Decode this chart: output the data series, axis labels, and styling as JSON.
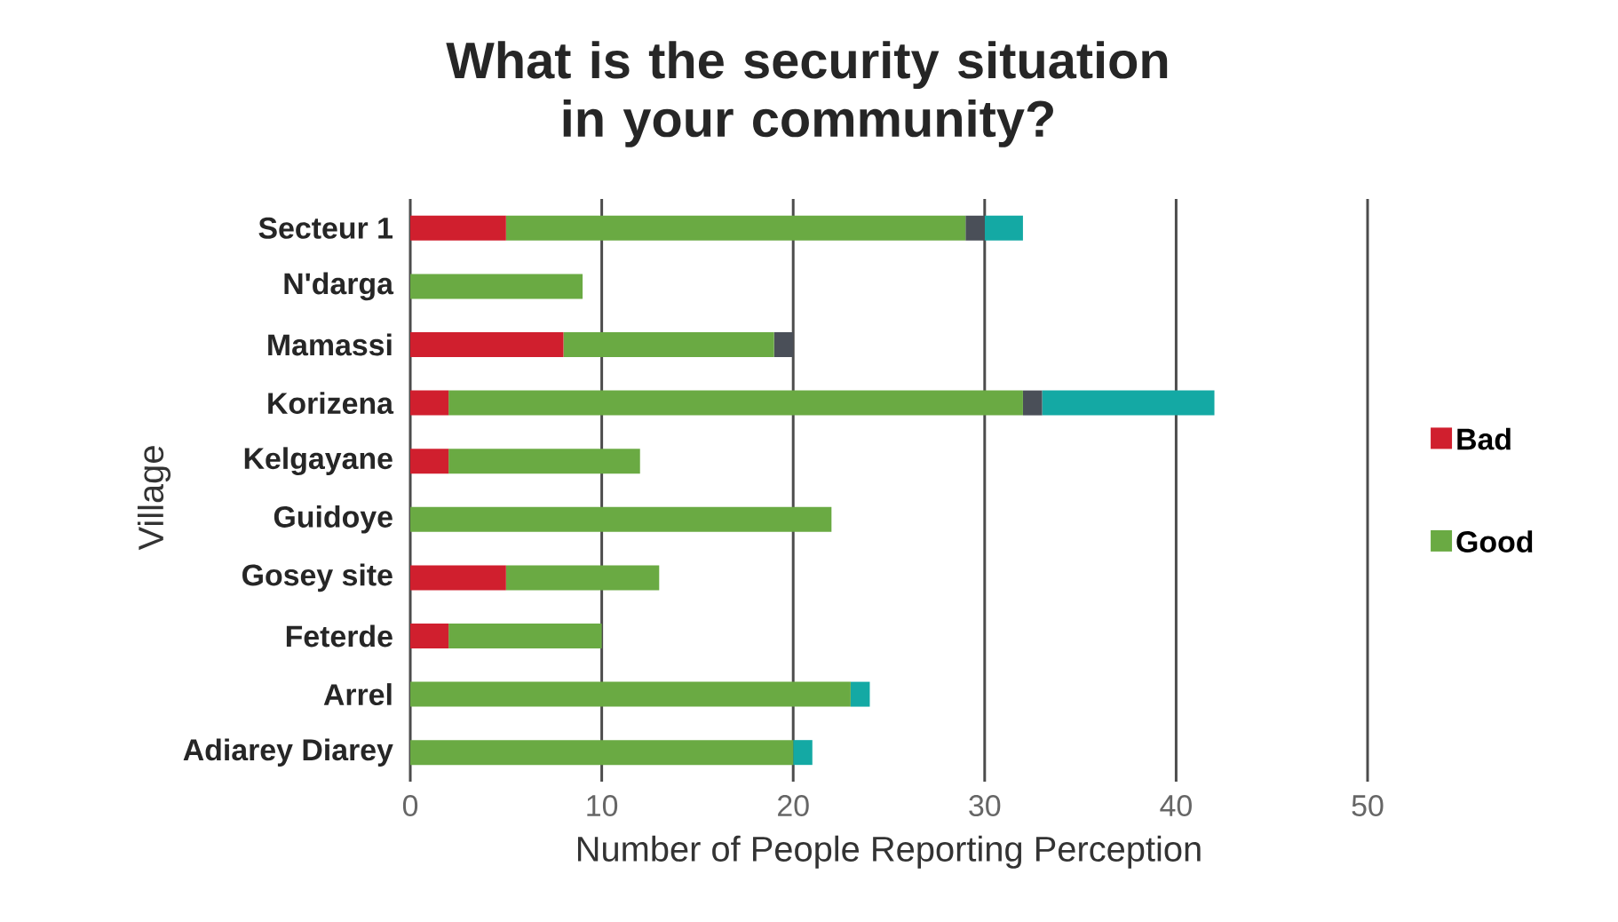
{
  "chart_data": {
    "type": "bar",
    "orientation": "horizontal",
    "stacked": true,
    "title": "What is the security situation in your community?",
    "xlabel": "Number of People Reporting Perception",
    "ylabel": "Village",
    "categories": [
      "Secteur 1",
      "N'darga",
      "Mamassi",
      "Korizena",
      "Kelgayane",
      "Guidoye",
      "Gosey site",
      "Feterde",
      "Arrel",
      "Adiarey Diarey"
    ],
    "series": [
      {
        "name": "Bad",
        "color": "#d01f2e",
        "values": [
          5,
          0,
          8,
          2,
          2,
          0,
          5,
          2,
          0,
          0
        ]
      },
      {
        "name": "Good",
        "color": "#6aaa43",
        "values": [
          24,
          9,
          11,
          30,
          10,
          22,
          8,
          8,
          23,
          20
        ]
      },
      {
        "color": "#4a4f58",
        "values": [
          1,
          0,
          1,
          1,
          0,
          0,
          0,
          0,
          0,
          0
        ]
      },
      {
        "color": "#14a9a4",
        "values": [
          2,
          0,
          0,
          9,
          0,
          0,
          0,
          0,
          1,
          1
        ]
      }
    ],
    "xlim": [
      0,
      50
    ],
    "xticks": [
      0,
      10,
      20,
      30,
      40,
      50
    ],
    "grid": "x",
    "legend": "right"
  }
}
